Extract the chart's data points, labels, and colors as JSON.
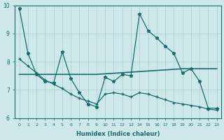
{
  "xlabel": "Humidex (Indice chaleur)",
  "xlim": [
    -0.5,
    23.5
  ],
  "ylim": [
    6,
    10
  ],
  "yticks": [
    6,
    7,
    8,
    9,
    10
  ],
  "xticks": [
    0,
    1,
    2,
    3,
    4,
    5,
    6,
    7,
    8,
    9,
    10,
    11,
    12,
    13,
    14,
    15,
    16,
    17,
    18,
    19,
    20,
    21,
    22,
    23
  ],
  "bg_color": "#cce8e8",
  "grid_color": "#aacece",
  "line_color": "#1a6b6b",
  "line1_x": [
    0,
    1,
    2,
    3,
    4,
    5,
    6,
    7,
    8,
    9,
    10,
    11,
    12,
    13,
    14,
    15,
    16,
    17,
    18,
    19,
    20,
    21,
    22,
    23
  ],
  "line1_y": [
    9.9,
    8.3,
    7.55,
    7.3,
    7.25,
    8.35,
    7.4,
    6.9,
    6.5,
    6.4,
    7.45,
    7.3,
    7.55,
    7.5,
    9.7,
    9.1,
    8.85,
    8.55,
    8.3,
    7.6,
    7.75,
    7.3,
    6.35,
    6.35
  ],
  "line2_x": [
    0,
    2,
    3,
    4,
    5,
    6,
    7,
    8,
    9,
    10,
    11,
    12,
    13,
    14,
    15,
    16,
    17,
    18,
    19,
    20,
    21,
    22,
    23
  ],
  "line2_y": [
    7.55,
    7.55,
    7.55,
    7.55,
    7.55,
    7.55,
    7.55,
    7.55,
    7.55,
    7.57,
    7.59,
    7.61,
    7.63,
    7.65,
    7.67,
    7.69,
    7.71,
    7.73,
    7.75,
    7.75,
    7.75,
    7.75,
    7.75
  ],
  "line3_x": [
    0,
    1,
    2,
    3,
    4,
    5,
    6,
    7,
    8,
    9,
    10,
    11,
    12,
    13,
    14,
    15,
    16,
    17,
    18,
    19,
    20,
    21,
    22,
    23
  ],
  "line3_y": [
    8.1,
    7.85,
    7.6,
    7.35,
    7.2,
    7.05,
    6.85,
    6.7,
    6.6,
    6.5,
    6.85,
    6.9,
    6.85,
    6.75,
    6.9,
    6.85,
    6.75,
    6.65,
    6.55,
    6.5,
    6.45,
    6.4,
    6.32,
    6.28
  ]
}
